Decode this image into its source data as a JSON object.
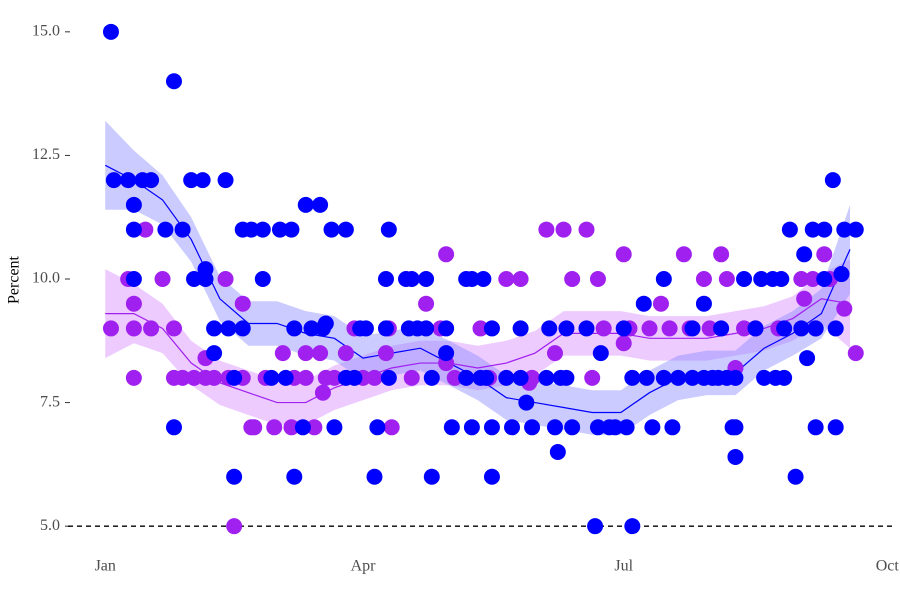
{
  "chart_data": {
    "type": "scatter",
    "ylabel": "Percent",
    "xlim": [
      -13,
      275
    ],
    "xticks": [
      {
        "value": 0,
        "label": "Jan"
      },
      {
        "value": 90,
        "label": "Apr"
      },
      {
        "value": 181,
        "label": "Jul"
      },
      {
        "value": 273,
        "label": "Oct"
      }
    ],
    "ylim": [
      4.7,
      15.3
    ],
    "yticks": [
      {
        "value": 5,
        "label": "5.0"
      },
      {
        "value": 7.5,
        "label": "7.5"
      },
      {
        "value": 10,
        "label": "10.0"
      },
      {
        "value": 12.5,
        "label": "12.5"
      },
      {
        "value": 15,
        "label": "15.0"
      }
    ],
    "grid": false,
    "hline": 5,
    "series": [
      {
        "color": "#a020f0",
        "band_color": "#d88cff",
        "x": [
          2,
          8,
          10,
          10,
          10,
          14,
          16,
          20,
          24,
          24,
          27,
          31,
          35,
          35,
          38,
          42,
          43,
          45,
          48,
          48,
          51,
          52,
          56,
          59,
          62,
          65,
          66,
          70,
          70,
          73,
          75,
          76,
          77,
          80,
          84,
          87,
          90,
          94,
          98,
          99,
          100,
          107,
          112,
          117,
          119,
          119,
          122,
          131,
          134,
          140,
          145,
          148,
          149,
          154,
          157,
          160,
          163,
          168,
          170,
          172,
          174,
          181,
          181,
          183,
          190,
          194,
          197,
          202,
          204,
          209,
          211,
          215,
          217,
          220,
          223,
          227,
          235,
          243,
          244,
          247,
          248,
          251,
          253,
          258,
          262
        ],
        "values": [
          9,
          10,
          9,
          8,
          9.5,
          11,
          9,
          10,
          9,
          8,
          8,
          8,
          8.4,
          8,
          8,
          10,
          8,
          5,
          9.5,
          8,
          7,
          7,
          8,
          7,
          8.5,
          7,
          8,
          8.5,
          8,
          7,
          8.5,
          7.7,
          8,
          8,
          8.5,
          9,
          8,
          8,
          8.5,
          9,
          7,
          8,
          9.5,
          9,
          10.5,
          8.3,
          8,
          9,
          8,
          10,
          10,
          7.9,
          8,
          11,
          8.5,
          11,
          10,
          11,
          8,
          10,
          9,
          8.7,
          10.5,
          9,
          9,
          9.5,
          9,
          10.5,
          9,
          10,
          9,
          10.5,
          10,
          8.2,
          9,
          9,
          9,
          10,
          9.6,
          10,
          9,
          10.5,
          10,
          9.4,
          8.5
        ],
        "trend": {
          "x": [
            0,
            10,
            20,
            30,
            40,
            50,
            60,
            70,
            80,
            90,
            100,
            110,
            120,
            130,
            140,
            150,
            160,
            170,
            180,
            190,
            200,
            210,
            220,
            230,
            240,
            250,
            260
          ],
          "values": [
            9.3,
            9.3,
            9.0,
            8.3,
            7.9,
            7.7,
            7.5,
            7.5,
            7.8,
            8.0,
            8.2,
            8.3,
            8.3,
            8.2,
            8.3,
            8.5,
            8.9,
            8.9,
            8.9,
            8.8,
            8.8,
            8.8,
            8.9,
            9.0,
            9.2,
            9.6,
            9.5
          ],
          "lower": [
            8.4,
            8.7,
            8.5,
            7.85,
            7.45,
            7.25,
            7.05,
            7.05,
            7.35,
            7.55,
            7.75,
            7.85,
            7.85,
            7.75,
            7.85,
            8.05,
            8.45,
            8.45,
            8.45,
            8.35,
            8.35,
            8.35,
            8.45,
            8.55,
            8.75,
            9.1,
            8.6
          ],
          "upper": [
            10.2,
            9.9,
            9.5,
            8.75,
            8.35,
            8.15,
            7.95,
            7.95,
            8.25,
            8.45,
            8.65,
            8.75,
            8.75,
            8.65,
            8.75,
            8.95,
            9.35,
            9.35,
            9.35,
            9.25,
            9.25,
            9.25,
            9.35,
            9.45,
            9.65,
            10.1,
            10.4
          ]
        }
      },
      {
        "color": "#0000ff",
        "band_color": "#8c8cff",
        "x": [
          2,
          3,
          8,
          10,
          10,
          10,
          13,
          16,
          21,
          24,
          24,
          27,
          30,
          34,
          31,
          35,
          35,
          38,
          38,
          42,
          43,
          45,
          45,
          48,
          48,
          51,
          55,
          55,
          58,
          61,
          63,
          65,
          66,
          66,
          69,
          70,
          72,
          75,
          76,
          77,
          79,
          80,
          84,
          84,
          87,
          89,
          91,
          94,
          95,
          98,
          98,
          99,
          99,
          105,
          106,
          107,
          109,
          112,
          112,
          114,
          114,
          119,
          119,
          121,
          126,
          126,
          128,
          128,
          131,
          132,
          133,
          135,
          135,
          135,
          140,
          142,
          145,
          145,
          147,
          149,
          154,
          155,
          157,
          158,
          159,
          161,
          161,
          163,
          168,
          171,
          172,
          173,
          176,
          178,
          181,
          182,
          184,
          184,
          188,
          189,
          191,
          195,
          195,
          198,
          200,
          205,
          205,
          209,
          209,
          212,
          214,
          215,
          217,
          219,
          220,
          220,
          220,
          223,
          227,
          229,
          230,
          233,
          234,
          236,
          237,
          237,
          239,
          241,
          243,
          244,
          245,
          247,
          248,
          248,
          251,
          251,
          254,
          255,
          255,
          257,
          258,
          262
        ],
        "values": [
          15,
          12,
          12,
          11.5,
          11,
          10,
          12,
          12,
          11,
          14,
          7,
          11,
          12,
          12,
          10,
          10,
          10.2,
          8.5,
          9,
          12,
          9,
          6,
          8,
          9,
          11,
          11,
          10,
          11,
          8,
          11,
          8,
          11,
          6,
          9,
          7,
          11.5,
          9,
          11.5,
          9,
          9.1,
          11,
          7,
          11,
          8,
          8,
          9,
          9,
          6,
          7,
          10,
          9,
          8,
          11,
          10,
          9,
          10,
          9,
          10,
          9,
          6,
          8,
          9,
          8.5,
          7,
          10,
          8,
          7,
          10,
          8,
          10,
          8,
          9,
          6,
          7,
          8,
          7,
          9,
          8,
          7.5,
          7,
          8,
          9,
          7,
          6.5,
          8,
          9,
          8,
          7,
          9,
          5,
          7,
          8.5,
          7,
          7,
          9,
          7,
          5,
          8,
          9.5,
          8,
          7,
          10,
          8,
          7,
          8,
          8,
          9,
          9.5,
          8,
          8,
          8,
          9,
          8,
          7,
          8,
          6.4,
          7,
          10,
          9,
          10,
          8,
          10,
          8,
          10,
          8,
          9,
          11,
          6,
          9,
          10.5,
          8.4,
          11,
          7,
          9,
          11,
          10,
          12,
          9,
          7,
          10.1,
          11,
          11
        ],
        "trend": {
          "x": [
            0,
            10,
            20,
            30,
            40,
            50,
            60,
            70,
            80,
            90,
            100,
            110,
            120,
            130,
            140,
            150,
            160,
            170,
            180,
            190,
            200,
            210,
            220,
            230,
            240,
            250,
            260
          ],
          "values": [
            12.3,
            12.0,
            11.6,
            10.8,
            9.6,
            9.1,
            9.1,
            8.9,
            8.8,
            8.4,
            8.5,
            8.6,
            8.3,
            8.0,
            7.6,
            7.5,
            7.4,
            7.3,
            7.3,
            7.7,
            8.0,
            8.1,
            8.1,
            8.6,
            8.9,
            9.3,
            10.6
          ],
          "lower": [
            11.4,
            11.4,
            11.1,
            10.35,
            9.15,
            8.65,
            8.65,
            8.45,
            8.35,
            7.95,
            8.05,
            8.15,
            7.85,
            7.55,
            7.15,
            7.05,
            6.95,
            6.85,
            6.85,
            7.25,
            7.55,
            7.65,
            7.65,
            8.15,
            8.45,
            8.8,
            9.7
          ],
          "upper": [
            13.2,
            12.6,
            12.1,
            11.25,
            10.05,
            9.55,
            9.55,
            9.35,
            9.25,
            8.85,
            8.95,
            9.05,
            8.75,
            8.45,
            8.05,
            7.95,
            7.85,
            7.75,
            7.75,
            8.15,
            8.45,
            8.55,
            8.55,
            9.05,
            9.35,
            9.8,
            11.5
          ]
        }
      }
    ]
  }
}
